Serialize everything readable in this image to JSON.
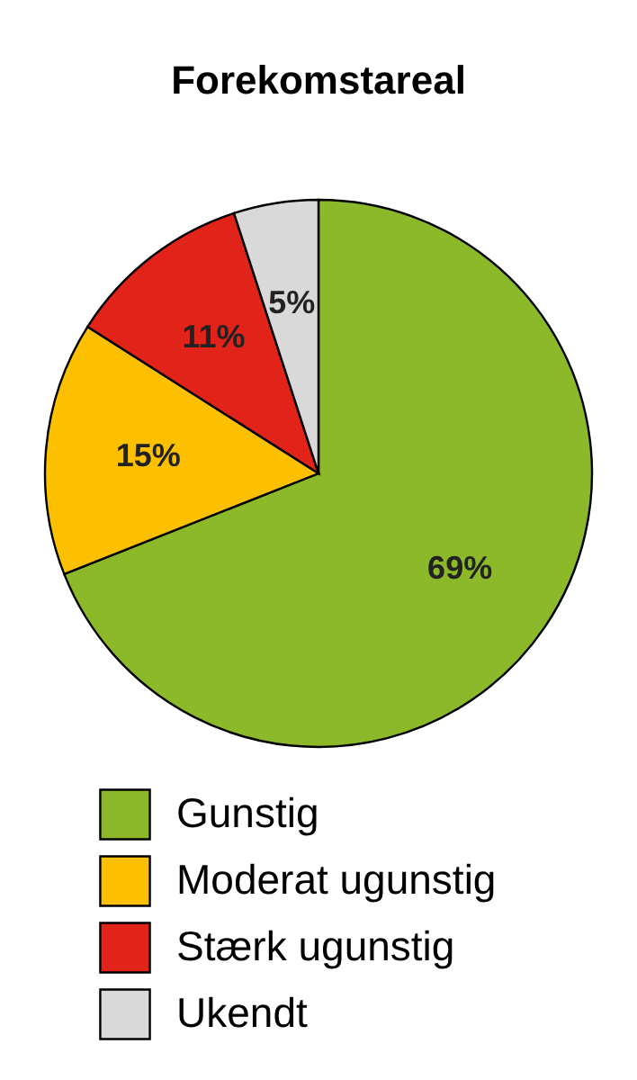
{
  "chart_data": {
    "type": "pie",
    "title": "Forekomstareal",
    "categories": [
      "Gunstig",
      "Moderat ugunstig",
      "Stærk ugunstig",
      "Ukendt"
    ],
    "values": [
      69,
      15,
      11,
      5
    ],
    "colors": [
      "#8cb92a",
      "#fcc000",
      "#e2231a",
      "#d9d9d9"
    ],
    "value_labels": [
      "69%",
      "15%",
      "11%",
      "5%"
    ],
    "legend": "bottom"
  }
}
